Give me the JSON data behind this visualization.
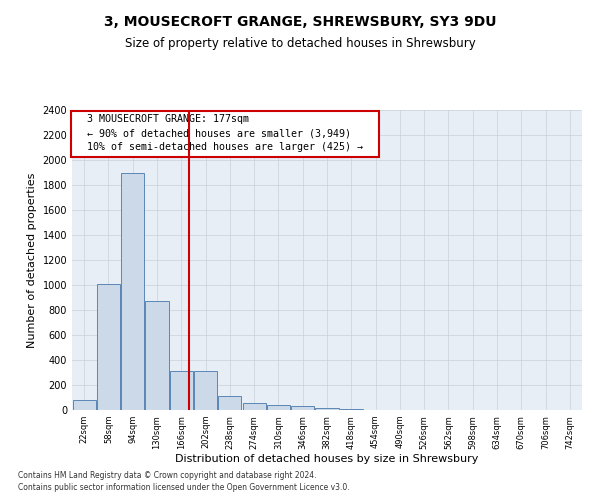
{
  "title": "3, MOUSECROFT GRANGE, SHREWSBURY, SY3 9DU",
  "subtitle": "Size of property relative to detached houses in Shrewsbury",
  "xlabel": "Distribution of detached houses by size in Shrewsbury",
  "ylabel": "Number of detached properties",
  "bar_labels": [
    "22sqm",
    "58sqm",
    "94sqm",
    "130sqm",
    "166sqm",
    "202sqm",
    "238sqm",
    "274sqm",
    "310sqm",
    "346sqm",
    "382sqm",
    "418sqm",
    "454sqm",
    "490sqm",
    "526sqm",
    "562sqm",
    "598sqm",
    "634sqm",
    "670sqm",
    "706sqm",
    "742sqm"
  ],
  "bar_values": [
    80,
    1010,
    1900,
    870,
    315,
    315,
    115,
    55,
    40,
    30,
    18,
    8,
    0,
    0,
    0,
    0,
    0,
    0,
    0,
    0,
    0
  ],
  "bar_color": "#ccd9e8",
  "bar_edge_color": "#5b87b5",
  "vline_color": "#cc0000",
  "ylim": [
    0,
    2400
  ],
  "yticks": [
    0,
    200,
    400,
    600,
    800,
    1000,
    1200,
    1400,
    1600,
    1800,
    2000,
    2200,
    2400
  ],
  "grid_color": "#c8d0dc",
  "annotation_text": "  3 MOUSECROFT GRANGE: 177sqm  \n  ← 90% of detached houses are smaller (3,949)  \n  10% of semi-detached houses are larger (425) →  ",
  "annotation_box_color": "#cc0000",
  "footnote1": "Contains HM Land Registry data © Crown copyright and database right 2024.",
  "footnote2": "Contains public sector information licensed under the Open Government Licence v3.0.",
  "bg_color": "#e8eef5"
}
